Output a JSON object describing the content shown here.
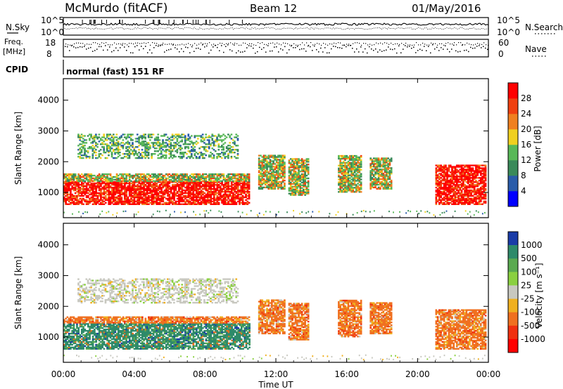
{
  "header": {
    "station": "McMurdo (fitACF)",
    "beam": "Beam 12",
    "date": "01/May/2016"
  },
  "noise_panel": {
    "left_label": "N.Sky",
    "right_label": "N.Search",
    "left_ticks": [
      "10^5",
      "10^0"
    ],
    "right_ticks": [
      "10^5",
      "10^0"
    ]
  },
  "freq_panel": {
    "left_label_line1": "Freq.",
    "left_label_line2": "[MHz]",
    "right_label": "Nave",
    "left_ticks": [
      "18",
      "8"
    ],
    "right_ticks": [
      "60",
      "0"
    ]
  },
  "cpid": {
    "label": "CPID",
    "text": "normal (fast) 151 RF"
  },
  "colors": {
    "power_scale": [
      "#0000ff",
      "#2a5caa",
      "#3a8a5a",
      "#58b858",
      "#f0d020",
      "#f08020",
      "#f04010",
      "#ff0000"
    ],
    "velocity_scale": [
      "#1a3ca8",
      "#2e8a6a",
      "#5aaa50",
      "#8ad040",
      "#c8c8c0",
      "#f0b020",
      "#f07020",
      "#f03010",
      "#ff0000"
    ]
  },
  "chart_data": [
    {
      "type": "heatmap",
      "panel": "power",
      "xlabel": "Time UT",
      "ylabel": "Slant Range [km]",
      "x_ticks": [
        "00:00",
        "04:00",
        "08:00",
        "12:00",
        "16:00",
        "20:00",
        "00:00"
      ],
      "y_ticks": [
        "1000",
        "2000",
        "3000",
        "4000"
      ],
      "xlim": [
        0,
        24
      ],
      "ylim": [
        180,
        4700
      ],
      "colorbar": {
        "label": "Power [dB]",
        "ticks": [
          "4",
          "8",
          "12",
          "16",
          "20",
          "24",
          "28"
        ],
        "range": [
          0,
          32
        ]
      },
      "regions": [
        {
          "t0": 0.0,
          "t1": 10.5,
          "r0": 600,
          "r1": 1350,
          "level": "strong"
        },
        {
          "t0": 0.0,
          "t1": 10.5,
          "r0": 1350,
          "r1": 1600,
          "level": "medium"
        },
        {
          "t0": 0.8,
          "t1": 9.8,
          "r0": 2100,
          "r1": 2900,
          "level": "weak"
        },
        {
          "t0": 11.0,
          "t1": 12.5,
          "r0": 1100,
          "r1": 2200,
          "level": "medium"
        },
        {
          "t0": 12.7,
          "t1": 13.8,
          "r0": 900,
          "r1": 2100,
          "level": "medium"
        },
        {
          "t0": 15.5,
          "t1": 16.8,
          "r0": 1000,
          "r1": 2200,
          "level": "medium"
        },
        {
          "t0": 17.3,
          "t1": 18.5,
          "r0": 1100,
          "r1": 2100,
          "level": "medium"
        },
        {
          "t0": 21.0,
          "t1": 23.8,
          "r0": 600,
          "r1": 1900,
          "level": "strong"
        }
      ]
    },
    {
      "type": "heatmap",
      "panel": "velocity",
      "xlabel": "Time UT",
      "ylabel": "Slant Range [km]",
      "x_ticks": [
        "00:00",
        "04:00",
        "08:00",
        "12:00",
        "16:00",
        "20:00",
        "00:00"
      ],
      "y_ticks": [
        "1000",
        "2000",
        "3000",
        "4000"
      ],
      "xlim": [
        0,
        24
      ],
      "ylim": [
        180,
        4700
      ],
      "colorbar": {
        "label": "Velocity [m s⁻¹]",
        "ticks": [
          "1000",
          "500",
          "100",
          "25",
          "-25",
          "-100",
          "-500",
          "-1000"
        ]
      },
      "regions": [
        {
          "t0": 0.0,
          "t1": 9.2,
          "r0": 600,
          "r1": 1450,
          "level": "toward"
        },
        {
          "t0": 9.2,
          "t1": 10.5,
          "r0": 600,
          "r1": 1450,
          "level": "toward"
        },
        {
          "t0": 0.0,
          "t1": 10.5,
          "r0": 1450,
          "r1": 1650,
          "level": "away"
        },
        {
          "t0": 0.8,
          "t1": 9.8,
          "r0": 2100,
          "r1": 2900,
          "level": "ground"
        },
        {
          "t0": 11.0,
          "t1": 12.5,
          "r0": 1100,
          "r1": 2200,
          "level": "away"
        },
        {
          "t0": 12.7,
          "t1": 13.8,
          "r0": 900,
          "r1": 2100,
          "level": "away"
        },
        {
          "t0": 15.5,
          "t1": 16.8,
          "r0": 1000,
          "r1": 2200,
          "level": "away"
        },
        {
          "t0": 17.3,
          "t1": 18.5,
          "r0": 1100,
          "r1": 2100,
          "level": "away"
        },
        {
          "t0": 21.0,
          "t1": 23.8,
          "r0": 600,
          "r1": 1900,
          "level": "away"
        }
      ]
    }
  ]
}
